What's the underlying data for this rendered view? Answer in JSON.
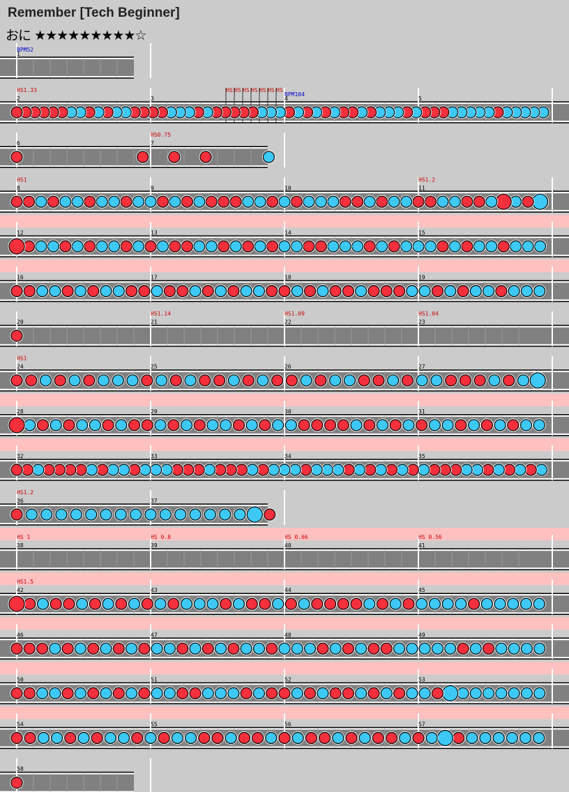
{
  "song": {
    "title": "Remember [Tech Beginner]",
    "course": "おに",
    "stars": "★★★★★★★★★☆"
  },
  "colors": {
    "don": "#f5303d",
    "ka": "#3ec8f5",
    "lane": "#808080",
    "bg": "#cbcbcb",
    "gogo": "#ffc0c0",
    "hs": "#cc0000",
    "bpm": "#0000cc"
  },
  "rows": [
    {
      "markers": [
        {
          "num": "1",
          "hs": "",
          "bpm": "BPM52"
        }
      ],
      "beats": 4,
      "gogo": false,
      "notes": []
    },
    {
      "markers": [
        {
          "num": "2",
          "hs": "HS1.33",
          "bpm": ""
        },
        {
          "num": "3",
          "hs": "",
          "bpm": ""
        },
        {
          "num": "4",
          "hs": "",
          "bpm": "BPM104"
        },
        {
          "num": "5",
          "hs": "",
          "bpm": ""
        }
      ],
      "beats": 16,
      "gogo": false,
      "overlapLabels": [
        "HS1",
        "HS",
        "HS",
        "HS",
        "HS",
        "HS",
        "HS"
      ],
      "notes": "ddxdddkkdkdkkdddxkkkdkdddddkkkdkdkxkddkdkkkdkddxkkkkkdkkkkk"
    },
    {
      "markers": [
        {
          "num": "6",
          "hs": "",
          "bpm": ""
        },
        {
          "num": "7",
          "hs": "HS0.75",
          "bpm": ""
        }
      ],
      "beats": 8,
      "gogo": false,
      "notes": "d.......d.d.d...k"
    },
    {
      "markers": [
        {
          "num": "8",
          "hs": "HS1",
          "bpm": ""
        },
        {
          "num": "9",
          "hs": "",
          "bpm": ""
        },
        {
          "num": "10",
          "hs": "",
          "bpm": ""
        },
        {
          "num": "11",
          "hs": "HS1.2",
          "bpm": ""
        }
      ],
      "beats": 16,
      "gogo": false,
      "notes": "ddkdkkdkkdkkdkdkdddkkdkdkkkddkdkkddkkddkDkdK"
    },
    {
      "markers": [
        {
          "num": "12",
          "hs": "",
          "bpm": ""
        },
        {
          "num": "13",
          "hs": "",
          "bpm": ""
        },
        {
          "num": "14",
          "hs": "",
          "bpm": ""
        },
        {
          "num": "15",
          "hs": "",
          "bpm": ""
        }
      ],
      "beats": 16,
      "gogo": true,
      "notes": "Ddkkdkdkkdkdkddkkdkdkdkkddkkkdkdkkkdkdkkdkkk"
    },
    {
      "markers": [
        {
          "num": "16",
          "hs": "",
          "bpm": ""
        },
        {
          "num": "17",
          "hs": "",
          "bpm": ""
        },
        {
          "num": "18",
          "hs": "",
          "bpm": ""
        },
        {
          "num": "19",
          "hs": "",
          "bpm": ""
        }
      ],
      "beats": 16,
      "gogo": true,
      "notes": "ddkkdkdkkddkddkdkdkkddkdkddkdddkkdkdkkdkkk"
    },
    {
      "markers": [
        {
          "num": "20",
          "hs": "",
          "bpm": ""
        },
        {
          "num": "21",
          "hs": "HS1.14",
          "bpm": ""
        },
        {
          "num": "22",
          "hs": "HS1.09",
          "bpm": ""
        },
        {
          "num": "23",
          "hs": "HS1.04",
          "bpm": ""
        }
      ],
      "beats": 16,
      "gogo": false,
      "notes": "d"
    },
    {
      "markers": [
        {
          "num": "24",
          "hs": "HS1",
          "bpm": ""
        },
        {
          "num": "25",
          "hs": "",
          "bpm": ""
        },
        {
          "num": "26",
          "hs": "",
          "bpm": ""
        },
        {
          "num": "27",
          "hs": "",
          "bpm": ""
        }
      ],
      "beats": 16,
      "gogo": false,
      "notes": "ddkdkdkkkdkdkddkdkddkdkkddkdkkdddkdkK"
    },
    {
      "markers": [
        {
          "num": "28",
          "hs": "",
          "bpm": ""
        },
        {
          "num": "29",
          "hs": "",
          "bpm": ""
        },
        {
          "num": "30",
          "hs": "",
          "bpm": ""
        },
        {
          "num": "31",
          "hs": "",
          "bpm": ""
        }
      ],
      "beats": 16,
      "gogo": true,
      "notes": "Dkdkdkkdkddkdkdkkdkdkkddddkdkdkdkkdkdkdkk"
    },
    {
      "markers": [
        {
          "num": "32",
          "hs": "",
          "bpm": ""
        },
        {
          "num": "33",
          "hs": "",
          "bpm": ""
        },
        {
          "num": "34",
          "hs": "",
          "bpm": ""
        },
        {
          "num": "35",
          "hs": "",
          "bpm": ""
        }
      ],
      "beats": 16,
      "gogo": true,
      "notes": "ddkddddkdkkdkkkdddkdddkdkkkdkkkdkdkdkdkdddkkdkdkdk"
    },
    {
      "markers": [
        {
          "num": "36",
          "hs": "HS1.2",
          "bpm": ""
        },
        {
          "num": "37",
          "hs": "",
          "bpm": ""
        }
      ],
      "beats": 8,
      "gogo": false,
      "notes": "dkkkkkkkkkkkkkkkKd"
    },
    {
      "markers": [
        {
          "num": "38",
          "hs": "HS 1",
          "bpm": ""
        },
        {
          "num": "39",
          "hs": "HS 0.8",
          "bpm": ""
        },
        {
          "num": "40",
          "hs": "HS 0.66",
          "bpm": ""
        },
        {
          "num": "41",
          "hs": "HS 0.56",
          "bpm": ""
        }
      ],
      "beats": 16,
      "gogo": true,
      "notes": ""
    },
    {
      "markers": [
        {
          "num": "42",
          "hs": "HS1.5",
          "bpm": ""
        },
        {
          "num": "43",
          "hs": "",
          "bpm": ""
        },
        {
          "num": "44",
          "hs": "",
          "bpm": ""
        },
        {
          "num": "45",
          "hs": "",
          "bpm": ""
        }
      ],
      "beats": 16,
      "gogo": true,
      "notes": "Ddkddkdkdkdkdkkkdkddkdkddddkdkdkkkkdkkkkk"
    },
    {
      "markers": [
        {
          "num": "46",
          "hs": "",
          "bpm": ""
        },
        {
          "num": "47",
          "hs": "",
          "bpm": ""
        },
        {
          "num": "48",
          "hs": "",
          "bpm": ""
        },
        {
          "num": "49",
          "hs": "",
          "bpm": ""
        }
      ],
      "beats": 16,
      "gogo": true,
      "notes": "dddkdkdkdkdkkdkdkdkkdkkkdkdkddkkkkkdkdkkkk"
    },
    {
      "markers": [
        {
          "num": "50",
          "hs": "",
          "bpm": ""
        },
        {
          "num": "51",
          "hs": "",
          "bpm": ""
        },
        {
          "num": "52",
          "hs": "",
          "bpm": ""
        },
        {
          "num": "53",
          "hs": "",
          "bpm": ""
        }
      ],
      "beats": 16,
      "gogo": true,
      "notes": "ddkkdkdkdkdkkddkkkdkddkdkddkdkdkkdKkkkkkkk"
    },
    {
      "markers": [
        {
          "num": "54",
          "hs": "",
          "bpm": ""
        },
        {
          "num": "55",
          "hs": "",
          "bpm": ""
        },
        {
          "num": "56",
          "hs": "",
          "bpm": ""
        },
        {
          "num": "57",
          "hs": "",
          "bpm": ""
        }
      ],
      "beats": 16,
      "gogo": true,
      "notes": "ddkkdkdkkdkdkkddkddkdkddkdkddkdkKdkkkkkk"
    },
    {
      "markers": [
        {
          "num": "58",
          "hs": "",
          "bpm": ""
        }
      ],
      "beats": 4,
      "gogo": false,
      "notes": "d"
    }
  ]
}
